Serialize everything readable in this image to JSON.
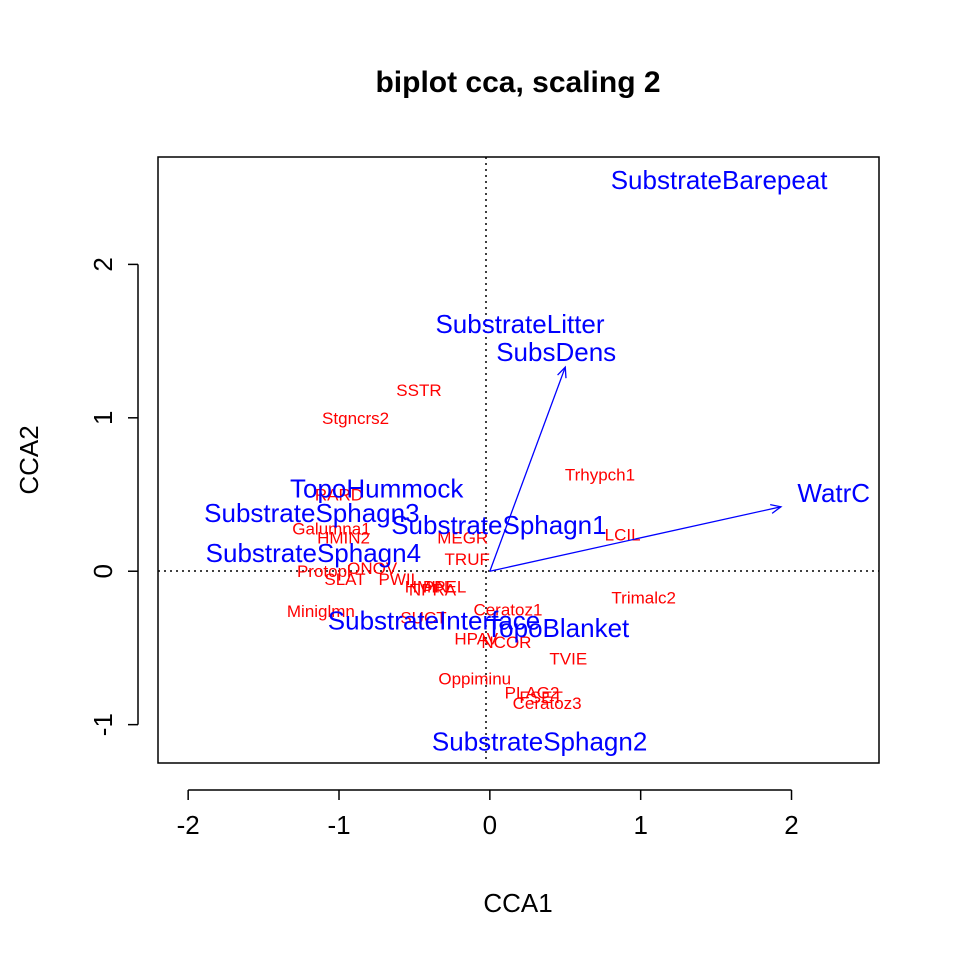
{
  "chart_data": {
    "type": "scatter",
    "title": "biplot cca, scaling 2",
    "xlabel": "CCA1",
    "ylabel": "CCA2",
    "xlim": [
      -2.2,
      2.58
    ],
    "ylim": [
      -1.25,
      2.7
    ],
    "xticks": [
      "-2",
      "-1",
      "0",
      "1",
      "2"
    ],
    "yticks": [
      "-1",
      "0",
      "1",
      "2"
    ],
    "reference_lines": {
      "x": 0,
      "y": 0,
      "style": "dotted"
    },
    "grid": false,
    "species_color": "#ff0000",
    "constraint_color": "#0000ff",
    "species": [
      {
        "label": "SSTR",
        "x": -0.47,
        "y": 1.18
      },
      {
        "label": "Stgncrs2",
        "x": -0.89,
        "y": 1.0
      },
      {
        "label": "Trhypch1",
        "x": 0.73,
        "y": 0.63
      },
      {
        "label": "LCIL",
        "x": 0.88,
        "y": 0.24
      },
      {
        "label": "Trimalc2",
        "x": 1.02,
        "y": -0.17
      },
      {
        "label": "RARD",
        "x": -1.0,
        "y": 0.5
      },
      {
        "label": "Galumna1",
        "x": -1.05,
        "y": 0.28
      },
      {
        "label": "HMIN2",
        "x": -0.97,
        "y": 0.22
      },
      {
        "label": "MEGR",
        "x": -0.18,
        "y": 0.22
      },
      {
        "label": "TRUF",
        "x": -0.15,
        "y": 0.08
      },
      {
        "label": "Protopl",
        "x": -1.1,
        "y": 0.0
      },
      {
        "label": "ONOV",
        "x": -0.78,
        "y": 0.02
      },
      {
        "label": "SLAT",
        "x": -0.96,
        "y": -0.05
      },
      {
        "label": "PWIL",
        "x": -0.6,
        "y": -0.05
      },
      {
        "label": "HMIN",
        "x": -0.42,
        "y": -0.1
      },
      {
        "label": "NPRA",
        "x": -0.38,
        "y": -0.12
      },
      {
        "label": "PPEL",
        "x": -0.3,
        "y": -0.1
      },
      {
        "label": "Miniglmn",
        "x": -1.12,
        "y": -0.26
      },
      {
        "label": "Ceratoz1",
        "x": 0.12,
        "y": -0.25
      },
      {
        "label": "HPAV",
        "x": -0.09,
        "y": -0.44
      },
      {
        "label": "SUCT",
        "x": -0.44,
        "y": -0.3
      },
      {
        "label": "NCOR",
        "x": 0.11,
        "y": -0.46
      },
      {
        "label": "TVIE",
        "x": 0.52,
        "y": -0.57
      },
      {
        "label": "Oppiminu",
        "x": -0.1,
        "y": -0.7
      },
      {
        "label": "PLAG2",
        "x": 0.28,
        "y": -0.79
      },
      {
        "label": "FSET",
        "x": 0.34,
        "y": -0.82
      },
      {
        "label": "Ceratoz3",
        "x": 0.38,
        "y": -0.86
      }
    ],
    "centroids": [
      {
        "label": "SubstrateBarepeat",
        "x": 1.52,
        "y": 2.55
      },
      {
        "label": "SubstrateLitter",
        "x": 0.2,
        "y": 1.61
      },
      {
        "label": "TopoHummock",
        "x": -0.75,
        "y": 0.54
      },
      {
        "label": "SubstrateSphagn3",
        "x": -1.18,
        "y": 0.38
      },
      {
        "label": "SubstrateSphagn1",
        "x": 0.06,
        "y": 0.3
      },
      {
        "label": "SubstrateSphagn4",
        "x": -1.17,
        "y": 0.12
      },
      {
        "label": "SubstrateInterface",
        "x": -0.37,
        "y": -0.32
      },
      {
        "label": "TopoBlanket",
        "x": 0.45,
        "y": -0.37
      },
      {
        "label": "SubstrateSphagn2",
        "x": 0.33,
        "y": -1.11
      }
    ],
    "biplot_arrows": [
      {
        "label": "SubsDens",
        "x": 0.5,
        "y": 1.33,
        "label_x": 0.44,
        "label_y": 1.43
      },
      {
        "label": "WatrC",
        "x": 1.93,
        "y": 0.42,
        "label_x": 2.28,
        "label_y": 0.51
      }
    ]
  }
}
